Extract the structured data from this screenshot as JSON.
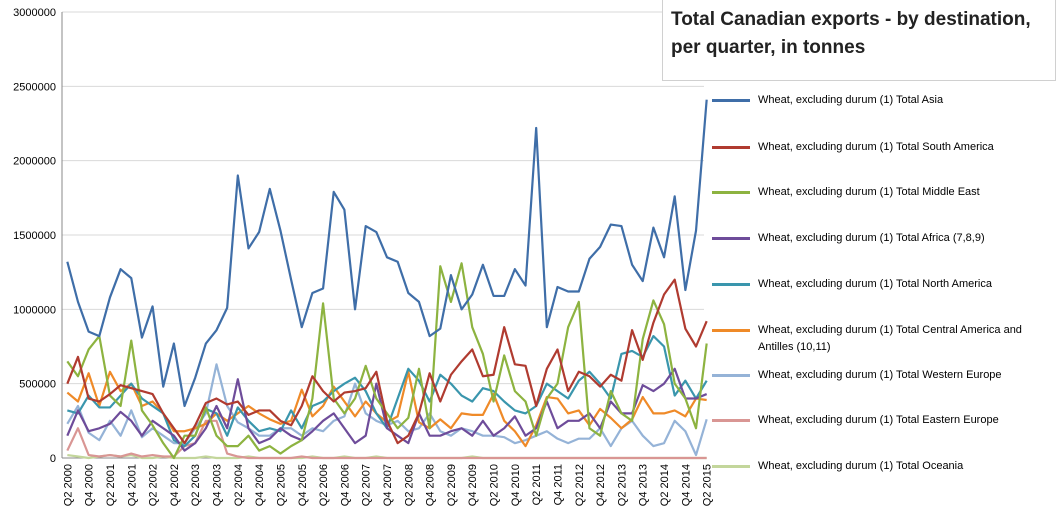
{
  "chart_data": {
    "type": "line",
    "title": "Total Canadian exports - by destination, per quarter, in tonnes",
    "categories": [
      "Q2 2000",
      null,
      "Q4 2000",
      null,
      "Q2 2001",
      null,
      "Q4 2001",
      null,
      "Q2 2002",
      null,
      "Q4 2002",
      null,
      "Q2 2003",
      null,
      "Q4 2003",
      null,
      "Q2 2004",
      null,
      "Q4 2004",
      null,
      "Q2 2005",
      null,
      "Q4 2005",
      null,
      "Q2 2006",
      null,
      "Q4 2006",
      null,
      "Q2 2007",
      null,
      "Q4 2007",
      null,
      "Q2 2008",
      null,
      "Q4 2008",
      null,
      "Q2 2009",
      null,
      "Q4 2009",
      null,
      "Q2 2010",
      null,
      "Q4 2010",
      null,
      "Q2 2011",
      null,
      "Q4 2011",
      null,
      "Q2 2012",
      null,
      "Q4 2012",
      null,
      "Q2 2013",
      null,
      "Q4 2013",
      null,
      "Q2 2014",
      null,
      "Q4 2014",
      null,
      "Q2 2015"
    ],
    "ylim": [
      0,
      3000000
    ],
    "yticks": [
      0,
      500000,
      1000000,
      1500000,
      2000000,
      2500000,
      3000000
    ],
    "grid": true,
    "legend": "right",
    "series": [
      {
        "name": "Wheat, excluding durum (1) Total Asia",
        "color": "#3f6ea8",
        "values": [
          1320000,
          1050000,
          850000,
          820000,
          1080000,
          1270000,
          1210000,
          810000,
          1020000,
          480000,
          770000,
          350000,
          540000,
          770000,
          860000,
          1010000,
          1900000,
          1410000,
          1520000,
          1810000,
          1530000,
          1200000,
          880000,
          1110000,
          1140000,
          1790000,
          1670000,
          1000000,
          1560000,
          1520000,
          1350000,
          1320000,
          1110000,
          1050000,
          820000,
          870000,
          1230000,
          1000000,
          1100000,
          1300000,
          1090000,
          1090000,
          1270000,
          1160000,
          2220000,
          880000,
          1150000,
          1120000,
          1120000,
          1340000,
          1420000,
          1570000,
          1560000,
          1300000,
          1190000,
          1550000,
          1350000,
          1760000,
          1130000,
          1530000,
          2410000
        ]
      },
      {
        "name": "Wheat, excluding durum (1) Total South America",
        "color": "#b03b30",
        "values": [
          500000,
          680000,
          400000,
          380000,
          430000,
          490000,
          470000,
          450000,
          430000,
          300000,
          200000,
          100000,
          220000,
          370000,
          400000,
          360000,
          380000,
          290000,
          320000,
          320000,
          250000,
          220000,
          350000,
          550000,
          450000,
          380000,
          440000,
          450000,
          470000,
          580000,
          250000,
          100000,
          150000,
          300000,
          570000,
          380000,
          560000,
          650000,
          730000,
          550000,
          560000,
          880000,
          630000,
          620000,
          350000,
          600000,
          730000,
          450000,
          580000,
          550000,
          480000,
          560000,
          520000,
          860000,
          660000,
          910000,
          1100000,
          1200000,
          870000,
          750000,
          920000
        ]
      },
      {
        "name": "Wheat, excluding durum (1) Total Middle East",
        "color": "#8db340",
        "values": [
          650000,
          550000,
          730000,
          820000,
          420000,
          350000,
          790000,
          320000,
          220000,
          100000,
          0,
          150000,
          150000,
          340000,
          150000,
          80000,
          80000,
          150000,
          50000,
          80000,
          30000,
          80000,
          120000,
          400000,
          1040000,
          400000,
          300000,
          400000,
          620000,
          400000,
          300000,
          200000,
          270000,
          600000,
          200000,
          1290000,
          1050000,
          1310000,
          880000,
          700000,
          380000,
          690000,
          450000,
          380000,
          150000,
          400000,
          500000,
          880000,
          1050000,
          200000,
          150000,
          450000,
          300000,
          250000,
          800000,
          1060000,
          900000,
          500000,
          400000,
          200000,
          770000
        ]
      },
      {
        "name": "Wheat, excluding durum (1) Total Africa (7,8,9)",
        "color": "#6e4c9a",
        "values": [
          150000,
          320000,
          180000,
          200000,
          230000,
          310000,
          250000,
          150000,
          250000,
          200000,
          150000,
          50000,
          100000,
          200000,
          350000,
          200000,
          530000,
          200000,
          100000,
          130000,
          200000,
          150000,
          120000,
          180000,
          250000,
          300000,
          200000,
          100000,
          150000,
          500000,
          200000,
          150000,
          100000,
          300000,
          150000,
          150000,
          180000,
          200000,
          150000,
          250000,
          150000,
          200000,
          280000,
          150000,
          200000,
          380000,
          200000,
          250000,
          250000,
          300000,
          200000,
          380000,
          300000,
          300000,
          490000,
          450000,
          500000,
          600000,
          400000,
          400000,
          430000
        ]
      },
      {
        "name": "Wheat, excluding durum (1) Total North America",
        "color": "#3a96ad",
        "values": [
          320000,
          300000,
          420000,
          340000,
          340000,
          420000,
          500000,
          400000,
          350000,
          300000,
          120000,
          80000,
          150000,
          330000,
          300000,
          150000,
          340000,
          250000,
          180000,
          200000,
          180000,
          320000,
          200000,
          350000,
          380000,
          450000,
          500000,
          540000,
          450000,
          300000,
          200000,
          400000,
          600000,
          520000,
          380000,
          560000,
          500000,
          420000,
          380000,
          470000,
          450000,
          380000,
          320000,
          300000,
          350000,
          500000,
          450000,
          400000,
          520000,
          580000,
          500000,
          400000,
          700000,
          720000,
          680000,
          820000,
          750000,
          420000,
          520000,
          400000,
          520000
        ]
      },
      {
        "name": "Wheat, excluding durum (1) Total Central America and Antilles (10,11)",
        "color": "#ef8a28",
        "values": [
          440000,
          380000,
          570000,
          350000,
          580000,
          450000,
          500000,
          350000,
          380000,
          300000,
          180000,
          180000,
          200000,
          230000,
          300000,
          250000,
          300000,
          350000,
          300000,
          260000,
          230000,
          250000,
          460000,
          280000,
          350000,
          480000,
          380000,
          280000,
          380000,
          300000,
          240000,
          280000,
          580000,
          240000,
          200000,
          260000,
          200000,
          300000,
          290000,
          290000,
          430000,
          250000,
          180000,
          80000,
          220000,
          410000,
          400000,
          300000,
          320000,
          220000,
          330000,
          270000,
          200000,
          260000,
          410000,
          300000,
          300000,
          320000,
          280000,
          400000,
          390000
        ]
      },
      {
        "name": "Wheat, excluding durum (1) Total Western Europe",
        "color": "#95b3d7",
        "values": [
          230000,
          350000,
          170000,
          120000,
          250000,
          150000,
          320000,
          140000,
          200000,
          150000,
          100000,
          100000,
          200000,
          300000,
          630000,
          350000,
          240000,
          200000,
          150000,
          150000,
          200000,
          200000,
          150000,
          200000,
          180000,
          250000,
          280000,
          500000,
          300000,
          250000,
          220000,
          250000,
          180000,
          200000,
          300000,
          180000,
          150000,
          200000,
          180000,
          150000,
          150000,
          140000,
          100000,
          120000,
          150000,
          180000,
          130000,
          100000,
          130000,
          130000,
          200000,
          80000,
          200000,
          250000,
          150000,
          80000,
          100000,
          250000,
          180000,
          20000,
          260000
        ]
      },
      {
        "name": "Wheat, excluding durum (1) Total Eastern Europe",
        "color": "#d99694",
        "values": [
          50000,
          200000,
          20000,
          10000,
          20000,
          10000,
          30000,
          10000,
          20000,
          10000,
          10000,
          80000,
          100000,
          250000,
          250000,
          30000,
          10000,
          0,
          0,
          0,
          0,
          0,
          10000,
          0,
          0,
          0,
          0,
          0,
          0,
          0,
          0,
          0,
          0,
          0,
          0,
          0,
          0,
          0,
          0,
          0,
          0,
          0,
          0,
          0,
          0,
          0,
          0,
          0,
          0,
          0,
          0,
          0,
          0,
          0,
          0,
          0,
          0,
          0,
          0,
          0,
          0
        ]
      },
      {
        "name": "Wheat, excluding durum (1) Total Oceania",
        "color": "#c3d69b",
        "values": [
          20000,
          10000,
          0,
          10000,
          20000,
          10000,
          20000,
          0,
          0,
          10000,
          0,
          0,
          0,
          10000,
          0,
          0,
          0,
          10000,
          0,
          0,
          0,
          0,
          0,
          10000,
          0,
          0,
          10000,
          0,
          0,
          10000,
          0,
          0,
          0,
          0,
          0,
          0,
          0,
          0,
          10000,
          0,
          0,
          0,
          0,
          0,
          0,
          0,
          0,
          0,
          0,
          0,
          0,
          0,
          0,
          0,
          0,
          0,
          0,
          0,
          0,
          0,
          0
        ]
      }
    ]
  }
}
